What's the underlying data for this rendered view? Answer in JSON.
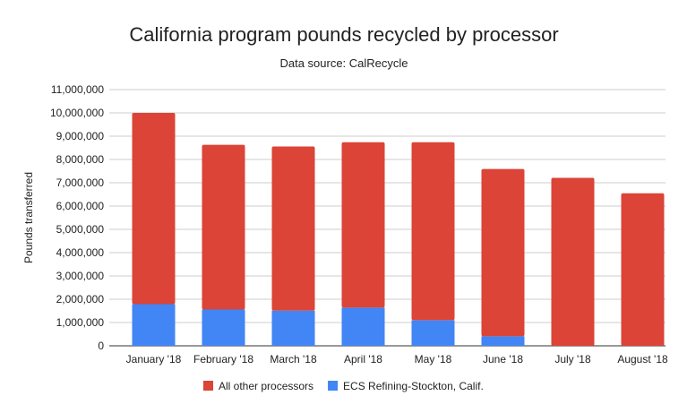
{
  "chart_data": {
    "type": "bar",
    "stacked": true,
    "title": "California program pounds recycled by processor",
    "subtitle": "Data source: CalRecycle",
    "xlabel": "",
    "ylabel": "Pounds transferred",
    "ylim": [
      0,
      11000000
    ],
    "yticks": [
      "0",
      "1,000,000",
      "2,000,000",
      "3,000,000",
      "4,000,000",
      "5,000,000",
      "6,000,000",
      "7,000,000",
      "8,000,000",
      "9,000,000",
      "10,000,000",
      "11,000,000"
    ],
    "categories": [
      "January '18",
      "February '18",
      "March '18",
      "April '18",
      "May '18",
      "June '18",
      "July '18",
      "August '18"
    ],
    "series": [
      {
        "name": "ECS Refining-Stockton, Calif.",
        "color": "#4285f4",
        "values": [
          1790000,
          1560000,
          1510000,
          1640000,
          1100000,
          410000,
          0,
          0
        ]
      },
      {
        "name": "All other processors",
        "color": "#db4437",
        "values": [
          8210000,
          7070000,
          7050000,
          7100000,
          7640000,
          7180000,
          7210000,
          6550000
        ]
      }
    ],
    "legend_order": [
      1,
      0
    ],
    "legend_position": "bottom",
    "grid": true
  }
}
